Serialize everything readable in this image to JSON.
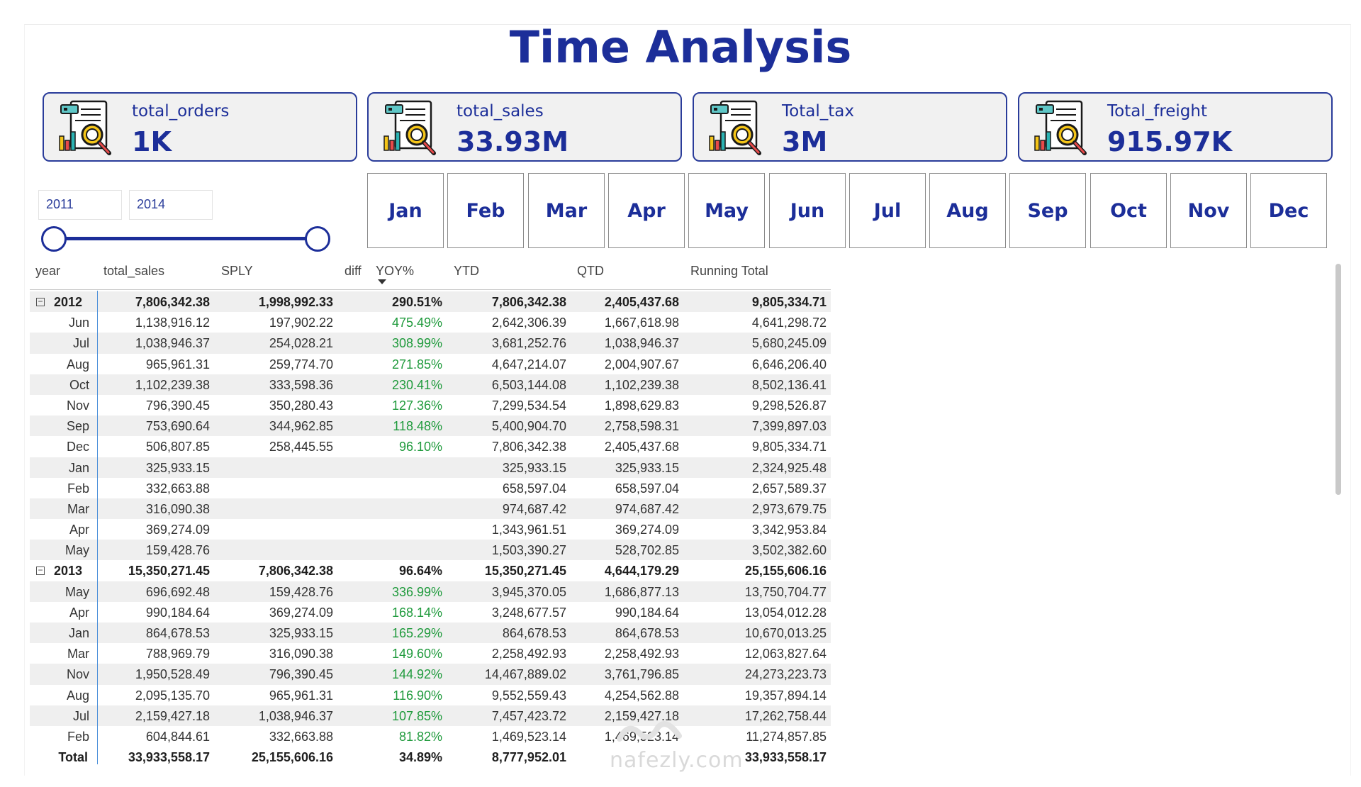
{
  "page": {
    "title": "Time Analysis"
  },
  "kpis": [
    {
      "label": "total_orders",
      "value": "1K"
    },
    {
      "label": "total_sales",
      "value": "33.93M"
    },
    {
      "label": "Total_tax",
      "value": "3M"
    },
    {
      "label": "Total_freight",
      "value": "915.97K"
    }
  ],
  "year_slicer": {
    "start": "2011",
    "end": "2014"
  },
  "months": [
    "Jan",
    "Feb",
    "Mar",
    "Apr",
    "May",
    "Jun",
    "Jul",
    "Aug",
    "Sep",
    "Oct",
    "Nov",
    "Dec"
  ],
  "table": {
    "headers": [
      "year",
      "total_sales",
      "SPLY",
      "diff",
      "YOY%",
      "YTD",
      "QTD",
      "Running Total"
    ],
    "rows": [
      {
        "kind": "group",
        "label": "2012",
        "total_sales": "7,806,342.38",
        "sply": "1,998,992.33",
        "yoy": "290.51%",
        "ytd": "7,806,342.38",
        "qtd": "2,405,437.68",
        "running": "9,805,334.71"
      },
      {
        "kind": "item",
        "label": "Jun",
        "total_sales": "1,138,916.12",
        "sply": "197,902.22",
        "yoy": "475.49%",
        "ytd": "2,642,306.39",
        "qtd": "1,667,618.98",
        "running": "4,641,298.72"
      },
      {
        "kind": "item",
        "label": "Jul",
        "total_sales": "1,038,946.37",
        "sply": "254,028.21",
        "yoy": "308.99%",
        "ytd": "3,681,252.76",
        "qtd": "1,038,946.37",
        "running": "5,680,245.09"
      },
      {
        "kind": "item",
        "label": "Aug",
        "total_sales": "965,961.31",
        "sply": "259,774.70",
        "yoy": "271.85%",
        "ytd": "4,647,214.07",
        "qtd": "2,004,907.67",
        "running": "6,646,206.40"
      },
      {
        "kind": "item",
        "label": "Oct",
        "total_sales": "1,102,239.38",
        "sply": "333,598.36",
        "yoy": "230.41%",
        "ytd": "6,503,144.08",
        "qtd": "1,102,239.38",
        "running": "8,502,136.41"
      },
      {
        "kind": "item",
        "label": "Nov",
        "total_sales": "796,390.45",
        "sply": "350,280.43",
        "yoy": "127.36%",
        "ytd": "7,299,534.54",
        "qtd": "1,898,629.83",
        "running": "9,298,526.87"
      },
      {
        "kind": "item",
        "label": "Sep",
        "total_sales": "753,690.64",
        "sply": "344,962.85",
        "yoy": "118.48%",
        "ytd": "5,400,904.70",
        "qtd": "2,758,598.31",
        "running": "7,399,897.03"
      },
      {
        "kind": "item",
        "label": "Dec",
        "total_sales": "506,807.85",
        "sply": "258,445.55",
        "yoy": "96.10%",
        "ytd": "7,806,342.38",
        "qtd": "2,405,437.68",
        "running": "9,805,334.71"
      },
      {
        "kind": "item",
        "label": "Jan",
        "total_sales": "325,933.15",
        "sply": "",
        "yoy": "",
        "ytd": "325,933.15",
        "qtd": "325,933.15",
        "running": "2,324,925.48"
      },
      {
        "kind": "item",
        "label": "Feb",
        "total_sales": "332,663.88",
        "sply": "",
        "yoy": "",
        "ytd": "658,597.04",
        "qtd": "658,597.04",
        "running": "2,657,589.37"
      },
      {
        "kind": "item",
        "label": "Mar",
        "total_sales": "316,090.38",
        "sply": "",
        "yoy": "",
        "ytd": "974,687.42",
        "qtd": "974,687.42",
        "running": "2,973,679.75"
      },
      {
        "kind": "item",
        "label": "Apr",
        "total_sales": "369,274.09",
        "sply": "",
        "yoy": "",
        "ytd": "1,343,961.51",
        "qtd": "369,274.09",
        "running": "3,342,953.84"
      },
      {
        "kind": "item",
        "label": "May",
        "total_sales": "159,428.76",
        "sply": "",
        "yoy": "",
        "ytd": "1,503,390.27",
        "qtd": "528,702.85",
        "running": "3,502,382.60"
      },
      {
        "kind": "group",
        "label": "2013",
        "total_sales": "15,350,271.45",
        "sply": "7,806,342.38",
        "yoy": "96.64%",
        "ytd": "15,350,271.45",
        "qtd": "4,644,179.29",
        "running": "25,155,606.16"
      },
      {
        "kind": "item",
        "label": "May",
        "total_sales": "696,692.48",
        "sply": "159,428.76",
        "yoy": "336.99%",
        "ytd": "3,945,370.05",
        "qtd": "1,686,877.13",
        "running": "13,750,704.77"
      },
      {
        "kind": "item",
        "label": "Apr",
        "total_sales": "990,184.64",
        "sply": "369,274.09",
        "yoy": "168.14%",
        "ytd": "3,248,677.57",
        "qtd": "990,184.64",
        "running": "13,054,012.28"
      },
      {
        "kind": "item",
        "label": "Jan",
        "total_sales": "864,678.53",
        "sply": "325,933.15",
        "yoy": "165.29%",
        "ytd": "864,678.53",
        "qtd": "864,678.53",
        "running": "10,670,013.25"
      },
      {
        "kind": "item",
        "label": "Mar",
        "total_sales": "788,969.79",
        "sply": "316,090.38",
        "yoy": "149.60%",
        "ytd": "2,258,492.93",
        "qtd": "2,258,492.93",
        "running": "12,063,827.64"
      },
      {
        "kind": "item",
        "label": "Nov",
        "total_sales": "1,950,528.49",
        "sply": "796,390.45",
        "yoy": "144.92%",
        "ytd": "14,467,889.02",
        "qtd": "3,761,796.85",
        "running": "24,273,223.73"
      },
      {
        "kind": "item",
        "label": "Aug",
        "total_sales": "2,095,135.70",
        "sply": "965,961.31",
        "yoy": "116.90%",
        "ytd": "9,552,559.43",
        "qtd": "4,254,562.88",
        "running": "19,357,894.14"
      },
      {
        "kind": "item",
        "label": "Jul",
        "total_sales": "2,159,427.18",
        "sply": "1,038,946.37",
        "yoy": "107.85%",
        "ytd": "7,457,423.72",
        "qtd": "2,159,427.18",
        "running": "17,262,758.44"
      },
      {
        "kind": "item",
        "label": "Feb",
        "total_sales": "604,844.61",
        "sply": "332,663.88",
        "yoy": "81.82%",
        "ytd": "1,469,523.14",
        "qtd": "1,469,523.14",
        "running": "11,274,857.85"
      }
    ],
    "total": {
      "label": "Total",
      "total_sales": "33,933,558.17",
      "sply": "25,155,606.16",
      "yoy": "34.89%",
      "ytd": "8,777,952.01",
      "qtd": "",
      "running": "33,933,558.17"
    }
  },
  "watermark": "nafezly.com",
  "colors": {
    "brand": "#1c2e99",
    "positive": "#1f9a3c",
    "row_shade": "#efefef"
  }
}
